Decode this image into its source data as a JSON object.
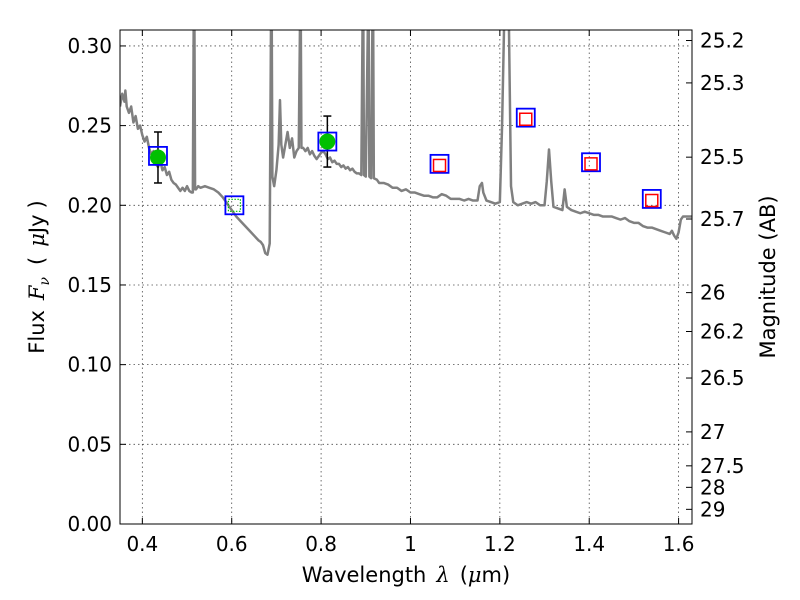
{
  "chart_data": {
    "type": "scatter",
    "xlabel": "Wavelength",
    "xlabel_symbol": "λ",
    "xlabel_unit_open": "(",
    "xlabel_unit_mu": "μ",
    "xlabel_unit_rest": "m)",
    "ylabel": "Flux",
    "ylabel_symbol": "F",
    "ylabel_symbol_sub": "ν",
    "ylabel_unit_open": "(",
    "ylabel_unit_mu": "μ",
    "ylabel_unit_rest": "Jy",
    "ylabel_unit_close": ")",
    "y2label": "Magnitude (AB)",
    "xlim": [
      0.35,
      1.63
    ],
    "ylim": [
      0.0,
      0.31
    ],
    "grid": true,
    "x_ticks": [
      0.4,
      0.6,
      0.8,
      1.0,
      1.2,
      1.4,
      1.6
    ],
    "x_tick_labels": [
      "0.4",
      "0.6",
      "0.8",
      "1",
      "1.2",
      "1.4",
      "1.6"
    ],
    "y_ticks": [
      0.0,
      0.05,
      0.1,
      0.15,
      0.2,
      0.25,
      0.3
    ],
    "y_tick_labels": [
      "0.00",
      "0.05",
      "0.10",
      "0.15",
      "0.20",
      "0.25",
      "0.30"
    ],
    "y2_ticks": [
      {
        "label": "25.2",
        "flux": 0.3034
      },
      {
        "label": "25.3",
        "flux": 0.2768
      },
      {
        "label": "25.5",
        "flux": 0.2302
      },
      {
        "label": "25.7",
        "flux": 0.1914
      },
      {
        "label": "26",
        "flux": 0.1452
      },
      {
        "label": "26.2",
        "flux": 0.1208
      },
      {
        "label": "26.5",
        "flux": 0.0916
      },
      {
        "label": "27",
        "flux": 0.0578
      },
      {
        "label": "27.5",
        "flux": 0.0365
      },
      {
        "label": "28",
        "flux": 0.023
      },
      {
        "label": "29",
        "flux": 0.0092
      }
    ],
    "observed_points": [
      {
        "x": 0.435,
        "y": 0.23,
        "yerr": 0.016
      },
      {
        "x": 0.814,
        "y": 0.24,
        "yerr": 0.016
      }
    ],
    "upper_limit_point": {
      "x": 0.606,
      "y": 0.2
    },
    "model_bandpass_points": [
      {
        "x": 0.435,
        "y": 0.231
      },
      {
        "x": 0.606,
        "y": 0.2
      },
      {
        "x": 0.814,
        "y": 0.24
      },
      {
        "x": 1.065,
        "y": 0.226
      },
      {
        "x": 1.258,
        "y": 0.255
      },
      {
        "x": 1.404,
        "y": 0.227
      },
      {
        "x": 1.54,
        "y": 0.204
      }
    ],
    "predicted_points": [
      {
        "x": 1.065,
        "y": 0.225
      },
      {
        "x": 1.258,
        "y": 0.254
      },
      {
        "x": 1.404,
        "y": 0.226
      },
      {
        "x": 1.54,
        "y": 0.203
      }
    ],
    "model_spectrum": [
      [
        0.35,
        0.262
      ],
      [
        0.355,
        0.27
      ],
      [
        0.36,
        0.265
      ],
      [
        0.362,
        0.272
      ],
      [
        0.365,
        0.262
      ],
      [
        0.37,
        0.258
      ],
      [
        0.375,
        0.262
      ],
      [
        0.38,
        0.252
      ],
      [
        0.385,
        0.256
      ],
      [
        0.39,
        0.248
      ],
      [
        0.395,
        0.25
      ],
      [
        0.4,
        0.244
      ],
      [
        0.405,
        0.24
      ],
      [
        0.41,
        0.243
      ],
      [
        0.415,
        0.236
      ],
      [
        0.42,
        0.232
      ],
      [
        0.425,
        0.234
      ],
      [
        0.43,
        0.226
      ],
      [
        0.435,
        0.224
      ],
      [
        0.44,
        0.228
      ],
      [
        0.445,
        0.222
      ],
      [
        0.45,
        0.224
      ],
      [
        0.455,
        0.219
      ],
      [
        0.46,
        0.221
      ],
      [
        0.465,
        0.216
      ],
      [
        0.47,
        0.214
      ],
      [
        0.475,
        0.213
      ],
      [
        0.48,
        0.211
      ],
      [
        0.485,
        0.209
      ],
      [
        0.49,
        0.211
      ],
      [
        0.495,
        0.209
      ],
      [
        0.5,
        0.212
      ],
      [
        0.505,
        0.209
      ],
      [
        0.51,
        0.208
      ],
      [
        0.513,
        0.208
      ],
      [
        0.515,
        0.32
      ],
      [
        0.5165,
        0.32
      ],
      [
        0.518,
        0.21
      ],
      [
        0.52,
        0.21
      ],
      [
        0.525,
        0.212
      ],
      [
        0.53,
        0.211
      ],
      [
        0.54,
        0.212
      ],
      [
        0.55,
        0.211
      ],
      [
        0.56,
        0.21
      ],
      [
        0.57,
        0.208
      ],
      [
        0.58,
        0.205
      ],
      [
        0.59,
        0.201
      ],
      [
        0.6,
        0.197
      ],
      [
        0.61,
        0.193
      ],
      [
        0.62,
        0.19
      ],
      [
        0.63,
        0.187
      ],
      [
        0.64,
        0.184
      ],
      [
        0.65,
        0.181
      ],
      [
        0.66,
        0.178
      ],
      [
        0.665,
        0.177
      ],
      [
        0.67,
        0.175
      ],
      [
        0.675,
        0.17
      ],
      [
        0.68,
        0.169
      ],
      [
        0.685,
        0.176
      ],
      [
        0.688,
        0.32
      ],
      [
        0.6895,
        0.32
      ],
      [
        0.691,
        0.218
      ],
      [
        0.695,
        0.212
      ],
      [
        0.7,
        0.222
      ],
      [
        0.705,
        0.238
      ],
      [
        0.708,
        0.266
      ],
      [
        0.711,
        0.238
      ],
      [
        0.715,
        0.23
      ],
      [
        0.72,
        0.238
      ],
      [
        0.725,
        0.246
      ],
      [
        0.73,
        0.236
      ],
      [
        0.735,
        0.242
      ],
      [
        0.74,
        0.23
      ],
      [
        0.745,
        0.234
      ],
      [
        0.75,
        0.236
      ],
      [
        0.753,
        0.32
      ],
      [
        0.7545,
        0.32
      ],
      [
        0.756,
        0.236
      ],
      [
        0.76,
        0.236
      ],
      [
        0.765,
        0.234
      ],
      [
        0.77,
        0.236
      ],
      [
        0.775,
        0.232
      ],
      [
        0.78,
        0.234
      ],
      [
        0.785,
        0.231
      ],
      [
        0.79,
        0.229
      ],
      [
        0.795,
        0.231
      ],
      [
        0.8,
        0.233
      ],
      [
        0.805,
        0.234
      ],
      [
        0.81,
        0.232
      ],
      [
        0.815,
        0.229
      ],
      [
        0.82,
        0.23
      ],
      [
        0.825,
        0.227
      ],
      [
        0.83,
        0.228
      ],
      [
        0.835,
        0.226
      ],
      [
        0.84,
        0.226
      ],
      [
        0.845,
        0.224
      ],
      [
        0.85,
        0.225
      ],
      [
        0.855,
        0.223
      ],
      [
        0.86,
        0.224
      ],
      [
        0.865,
        0.222
      ],
      [
        0.87,
        0.223
      ],
      [
        0.875,
        0.221
      ],
      [
        0.88,
        0.22
      ],
      [
        0.885,
        0.22
      ],
      [
        0.89,
        0.219
      ],
      [
        0.893,
        0.32
      ],
      [
        0.8945,
        0.32
      ],
      [
        0.896,
        0.219
      ],
      [
        0.9,
        0.218
      ],
      [
        0.905,
        0.32
      ],
      [
        0.9065,
        0.32
      ],
      [
        0.908,
        0.218
      ],
      [
        0.912,
        0.217
      ],
      [
        0.915,
        0.32
      ],
      [
        0.9165,
        0.32
      ],
      [
        0.918,
        0.217
      ],
      [
        0.925,
        0.216
      ],
      [
        0.93,
        0.214
      ],
      [
        0.94,
        0.214
      ],
      [
        0.95,
        0.213
      ],
      [
        0.96,
        0.211
      ],
      [
        0.97,
        0.211
      ],
      [
        0.98,
        0.209
      ],
      [
        0.99,
        0.21
      ],
      [
        1.0,
        0.208
      ],
      [
        1.01,
        0.208
      ],
      [
        1.02,
        0.207
      ],
      [
        1.03,
        0.206
      ],
      [
        1.04,
        0.206
      ],
      [
        1.05,
        0.205
      ],
      [
        1.06,
        0.205
      ],
      [
        1.07,
        0.207
      ],
      [
        1.08,
        0.206
      ],
      [
        1.09,
        0.204
      ],
      [
        1.1,
        0.204
      ],
      [
        1.11,
        0.204
      ],
      [
        1.12,
        0.203
      ],
      [
        1.13,
        0.204
      ],
      [
        1.14,
        0.203
      ],
      [
        1.15,
        0.203
      ],
      [
        1.155,
        0.212
      ],
      [
        1.16,
        0.214
      ],
      [
        1.163,
        0.208
      ],
      [
        1.17,
        0.203
      ],
      [
        1.18,
        0.202
      ],
      [
        1.19,
        0.201
      ],
      [
        1.2,
        0.202
      ],
      [
        1.205,
        0.25
      ],
      [
        1.21,
        0.32
      ],
      [
        1.22,
        0.32
      ],
      [
        1.225,
        0.212
      ],
      [
        1.23,
        0.202
      ],
      [
        1.24,
        0.2
      ],
      [
        1.25,
        0.201
      ],
      [
        1.26,
        0.202
      ],
      [
        1.27,
        0.201
      ],
      [
        1.28,
        0.202
      ],
      [
        1.29,
        0.2
      ],
      [
        1.3,
        0.2
      ],
      [
        1.305,
        0.215
      ],
      [
        1.31,
        0.235
      ],
      [
        1.315,
        0.215
      ],
      [
        1.32,
        0.199
      ],
      [
        1.33,
        0.198
      ],
      [
        1.34,
        0.197
      ],
      [
        1.345,
        0.21
      ],
      [
        1.35,
        0.199
      ],
      [
        1.36,
        0.197
      ],
      [
        1.37,
        0.196
      ],
      [
        1.38,
        0.195
      ],
      [
        1.39,
        0.196
      ],
      [
        1.4,
        0.195
      ],
      [
        1.41,
        0.194
      ],
      [
        1.42,
        0.194
      ],
      [
        1.43,
        0.193
      ],
      [
        1.44,
        0.193
      ],
      [
        1.45,
        0.193
      ],
      [
        1.46,
        0.192
      ],
      [
        1.47,
        0.191
      ],
      [
        1.48,
        0.192
      ],
      [
        1.49,
        0.19
      ],
      [
        1.5,
        0.189
      ],
      [
        1.51,
        0.189
      ],
      [
        1.52,
        0.187
      ],
      [
        1.53,
        0.186
      ],
      [
        1.54,
        0.186
      ],
      [
        1.55,
        0.185
      ],
      [
        1.56,
        0.184
      ],
      [
        1.57,
        0.183
      ],
      [
        1.58,
        0.182
      ],
      [
        1.585,
        0.184
      ],
      [
        1.59,
        0.181
      ],
      [
        1.595,
        0.179
      ],
      [
        1.6,
        0.183
      ],
      [
        1.605,
        0.191
      ],
      [
        1.61,
        0.193
      ],
      [
        1.62,
        0.193
      ],
      [
        1.63,
        0.193
      ]
    ],
    "colors": {
      "spectrum": "#808080",
      "observed": "#00c000",
      "bandpass_box": "#0000ff",
      "predicted_box": "#ff0000",
      "upper_limit": "#00c000"
    }
  }
}
